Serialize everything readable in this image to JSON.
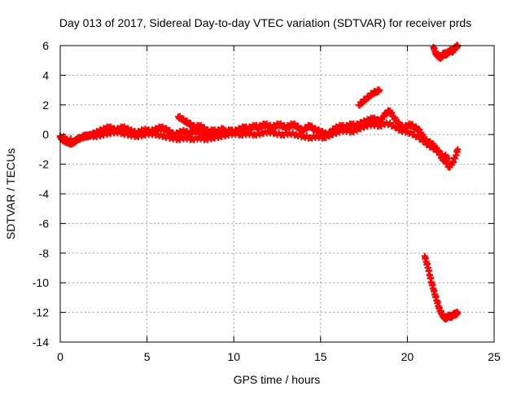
{
  "chart_data": {
    "type": "scatter",
    "title": "Day 013 of 2017, Sidereal Day-to-day VTEC variation (SDTVAR) for receiver prds",
    "xlabel": "GPS time / hours",
    "ylabel": "SDTVAR / TECUs",
    "xlim": [
      0,
      25
    ],
    "ylim": [
      -14,
      6
    ],
    "xticks": [
      0,
      5,
      10,
      15,
      20,
      25
    ],
    "yticks": [
      -14,
      -12,
      -10,
      -8,
      -6,
      -4,
      -2,
      0,
      2,
      4,
      6
    ],
    "xtick_labels": [
      "0",
      "5",
      "10",
      "15",
      "20",
      "25"
    ],
    "ytick_labels": [
      "-14",
      "-12",
      "-10",
      "-8",
      "-6",
      "-4",
      "-2",
      "0",
      "2",
      "4",
      "6"
    ],
    "grid": true,
    "series": [
      {
        "name": "main-band",
        "color": "#ff0000",
        "points": [
          [
            0.0,
            -0.2
          ],
          [
            0.2,
            -0.4
          ],
          [
            0.4,
            -0.5
          ],
          [
            0.6,
            -0.6
          ],
          [
            0.8,
            -0.5
          ],
          [
            1.0,
            -0.3
          ],
          [
            1.2,
            -0.2
          ],
          [
            1.4,
            -0.1
          ],
          [
            1.6,
            -0.1
          ],
          [
            1.8,
            0.0
          ],
          [
            2.0,
            0.1
          ],
          [
            2.2,
            0.2
          ],
          [
            2.4,
            0.3
          ],
          [
            2.6,
            0.4
          ],
          [
            2.8,
            0.5
          ],
          [
            3.0,
            0.4
          ],
          [
            3.2,
            0.3
          ],
          [
            3.4,
            0.4
          ],
          [
            3.6,
            0.5
          ],
          [
            3.8,
            0.4
          ],
          [
            4.0,
            0.3
          ],
          [
            4.2,
            0.2
          ],
          [
            4.4,
            0.1
          ],
          [
            4.6,
            0.2
          ],
          [
            4.8,
            0.3
          ],
          [
            5.0,
            0.3
          ],
          [
            5.2,
            0.2
          ],
          [
            5.4,
            0.3
          ],
          [
            5.6,
            0.4
          ],
          [
            5.8,
            0.5
          ],
          [
            6.0,
            0.4
          ],
          [
            6.2,
            0.3
          ],
          [
            6.4,
            0.1
          ],
          [
            6.6,
            0.0
          ],
          [
            6.8,
            0.1
          ],
          [
            7.0,
            0.2
          ],
          [
            7.2,
            0.2
          ],
          [
            7.4,
            0.1
          ],
          [
            7.6,
            0.2
          ],
          [
            7.8,
            0.3
          ],
          [
            8.0,
            0.2
          ],
          [
            8.2,
            0.1
          ],
          [
            8.4,
            0.0
          ],
          [
            8.6,
            0.1
          ],
          [
            8.8,
            0.0
          ],
          [
            9.0,
            0.0
          ],
          [
            9.2,
            0.1
          ],
          [
            9.4,
            0.2
          ],
          [
            9.6,
            0.2
          ],
          [
            9.8,
            0.3
          ],
          [
            10.0,
            0.2
          ],
          [
            10.2,
            0.3
          ],
          [
            10.4,
            0.4
          ],
          [
            10.6,
            0.5
          ],
          [
            10.8,
            0.4
          ],
          [
            11.0,
            0.5
          ],
          [
            11.2,
            0.6
          ],
          [
            11.4,
            0.5
          ],
          [
            11.6,
            0.6
          ],
          [
            11.8,
            0.7
          ],
          [
            12.0,
            0.6
          ],
          [
            12.2,
            0.5
          ],
          [
            12.4,
            0.6
          ],
          [
            12.6,
            0.7
          ],
          [
            12.8,
            0.6
          ],
          [
            13.0,
            0.5
          ],
          [
            13.2,
            0.6
          ],
          [
            13.4,
            0.7
          ],
          [
            13.6,
            0.6
          ],
          [
            13.8,
            0.4
          ],
          [
            14.0,
            0.3
          ],
          [
            14.2,
            0.5
          ],
          [
            14.4,
            0.6
          ],
          [
            14.6,
            0.4
          ],
          [
            14.8,
            0.3
          ],
          [
            15.0,
            0.2
          ],
          [
            15.2,
            0.1
          ],
          [
            15.4,
            0.0
          ],
          [
            15.6,
            0.2
          ],
          [
            15.8,
            0.4
          ],
          [
            16.0,
            0.5
          ],
          [
            16.2,
            0.6
          ],
          [
            16.4,
            0.5
          ],
          [
            16.6,
            0.6
          ],
          [
            16.8,
            0.7
          ],
          [
            17.0,
            0.6
          ],
          [
            17.2,
            0.7
          ],
          [
            17.4,
            0.8
          ],
          [
            17.6,
            0.9
          ],
          [
            17.8,
            1.0
          ],
          [
            18.0,
            1.1
          ],
          [
            18.2,
            1.0
          ],
          [
            18.4,
            0.9
          ],
          [
            18.6,
            1.2
          ],
          [
            18.8,
            1.5
          ],
          [
            19.0,
            1.6
          ],
          [
            19.2,
            1.2
          ],
          [
            19.4,
            0.9
          ],
          [
            19.6,
            0.6
          ],
          [
            19.8,
            0.5
          ],
          [
            20.0,
            0.6
          ],
          [
            20.2,
            0.7
          ],
          [
            20.4,
            0.5
          ],
          [
            20.6,
            0.4
          ],
          [
            20.8,
            0.1
          ],
          [
            21.0,
            -0.3
          ],
          [
            21.2,
            -0.5
          ],
          [
            21.4,
            -0.6
          ],
          [
            21.6,
            -0.8
          ],
          [
            21.8,
            -1.2
          ],
          [
            22.0,
            -1.6
          ],
          [
            22.2,
            -1.8
          ],
          [
            22.4,
            -2.2
          ],
          [
            22.6,
            -1.9
          ],
          [
            22.8,
            -1.4
          ],
          [
            22.9,
            -1.0
          ]
        ]
      },
      {
        "name": "lower-band",
        "color": "#ff0000",
        "points": [
          [
            0.0,
            -0.1
          ],
          [
            0.4,
            -0.3
          ],
          [
            0.8,
            -0.4
          ],
          [
            1.2,
            -0.2
          ],
          [
            1.6,
            0.0
          ],
          [
            2.0,
            -0.1
          ],
          [
            2.4,
            0.0
          ],
          [
            2.8,
            0.1
          ],
          [
            3.2,
            0.2
          ],
          [
            3.6,
            0.1
          ],
          [
            4.0,
            0.0
          ],
          [
            4.4,
            -0.1
          ],
          [
            4.8,
            0.0
          ],
          [
            5.2,
            0.1
          ],
          [
            5.6,
            0.0
          ],
          [
            6.0,
            -0.1
          ],
          [
            6.4,
            -0.2
          ],
          [
            6.8,
            -0.3
          ],
          [
            7.2,
            -0.2
          ],
          [
            7.6,
            -0.3
          ],
          [
            8.0,
            -0.2
          ],
          [
            8.4,
            -0.3
          ],
          [
            8.8,
            -0.2
          ],
          [
            9.2,
            -0.1
          ],
          [
            9.6,
            0.0
          ],
          [
            10.0,
            0.1
          ],
          [
            10.4,
            0.0
          ],
          [
            10.8,
            0.1
          ],
          [
            11.2,
            0.0
          ],
          [
            11.6,
            0.1
          ],
          [
            12.0,
            0.2
          ],
          [
            12.4,
            0.1
          ],
          [
            12.8,
            0.0
          ],
          [
            13.2,
            0.1
          ],
          [
            13.6,
            0.0
          ],
          [
            14.0,
            -0.1
          ],
          [
            14.4,
            -0.2
          ],
          [
            14.8,
            -0.1
          ],
          [
            15.2,
            -0.2
          ],
          [
            15.6,
            0.0
          ],
          [
            16.0,
            0.2
          ],
          [
            16.4,
            0.3
          ],
          [
            16.8,
            0.2
          ],
          [
            17.2,
            0.4
          ],
          [
            17.6,
            0.6
          ],
          [
            18.0,
            0.7
          ],
          [
            18.4,
            0.6
          ],
          [
            18.8,
            0.8
          ],
          [
            19.2,
            0.6
          ],
          [
            19.6,
            0.3
          ],
          [
            20.0,
            0.2
          ],
          [
            20.4,
            0.0
          ],
          [
            20.8,
            -0.3
          ],
          [
            21.2,
            -0.7
          ],
          [
            21.6,
            -1.0
          ],
          [
            22.0,
            -1.3
          ],
          [
            22.4,
            -1.6
          ]
        ]
      },
      {
        "name": "upper-hump",
        "color": "#ff0000",
        "points": [
          [
            6.8,
            1.2
          ],
          [
            7.0,
            1.1
          ],
          [
            7.2,
            0.9
          ],
          [
            7.4,
            0.8
          ],
          [
            7.6,
            0.6
          ],
          [
            7.8,
            0.5
          ],
          [
            8.0,
            0.6
          ],
          [
            8.2,
            0.5
          ],
          [
            8.4,
            0.3
          ],
          [
            8.6,
            0.2
          ],
          [
            8.8,
            0.3
          ],
          [
            9.0,
            0.2
          ],
          [
            9.2,
            0.3
          ],
          [
            9.4,
            0.4
          ]
        ]
      },
      {
        "name": "rising-arm",
        "color": "#ff0000",
        "points": [
          [
            17.2,
            2.0
          ],
          [
            17.4,
            2.2
          ],
          [
            17.6,
            2.4
          ],
          [
            17.8,
            2.6
          ],
          [
            18.0,
            2.8
          ],
          [
            18.2,
            2.9
          ],
          [
            18.4,
            3.0
          ]
        ]
      },
      {
        "name": "top-right-cluster",
        "color": "#ff0000",
        "points": [
          [
            21.5,
            5.9
          ],
          [
            21.6,
            5.6
          ],
          [
            21.7,
            5.4
          ],
          [
            21.8,
            5.3
          ],
          [
            21.9,
            5.2
          ],
          [
            22.0,
            5.3
          ],
          [
            22.1,
            5.5
          ],
          [
            22.2,
            5.4
          ],
          [
            22.3,
            5.5
          ],
          [
            22.4,
            5.6
          ],
          [
            22.5,
            5.7
          ],
          [
            22.6,
            5.6
          ],
          [
            22.7,
            5.8
          ],
          [
            22.8,
            5.9
          ],
          [
            22.9,
            6.0
          ]
        ]
      },
      {
        "name": "bottom-right-cluster",
        "color": "#ff0000",
        "points": [
          [
            21.0,
            -8.2
          ],
          [
            21.1,
            -8.6
          ],
          [
            21.2,
            -9.0
          ],
          [
            21.3,
            -9.5
          ],
          [
            21.4,
            -10.0
          ],
          [
            21.5,
            -10.4
          ],
          [
            21.6,
            -10.8
          ],
          [
            21.7,
            -11.2
          ],
          [
            21.8,
            -11.6
          ],
          [
            21.9,
            -11.9
          ],
          [
            22.0,
            -12.1
          ],
          [
            22.1,
            -12.3
          ],
          [
            22.2,
            -12.4
          ],
          [
            22.3,
            -12.3
          ],
          [
            22.4,
            -12.2
          ],
          [
            22.5,
            -12.3
          ],
          [
            22.6,
            -12.2
          ],
          [
            22.7,
            -12.1
          ],
          [
            22.8,
            -12.1
          ],
          [
            22.9,
            -12.0
          ]
        ]
      }
    ]
  }
}
